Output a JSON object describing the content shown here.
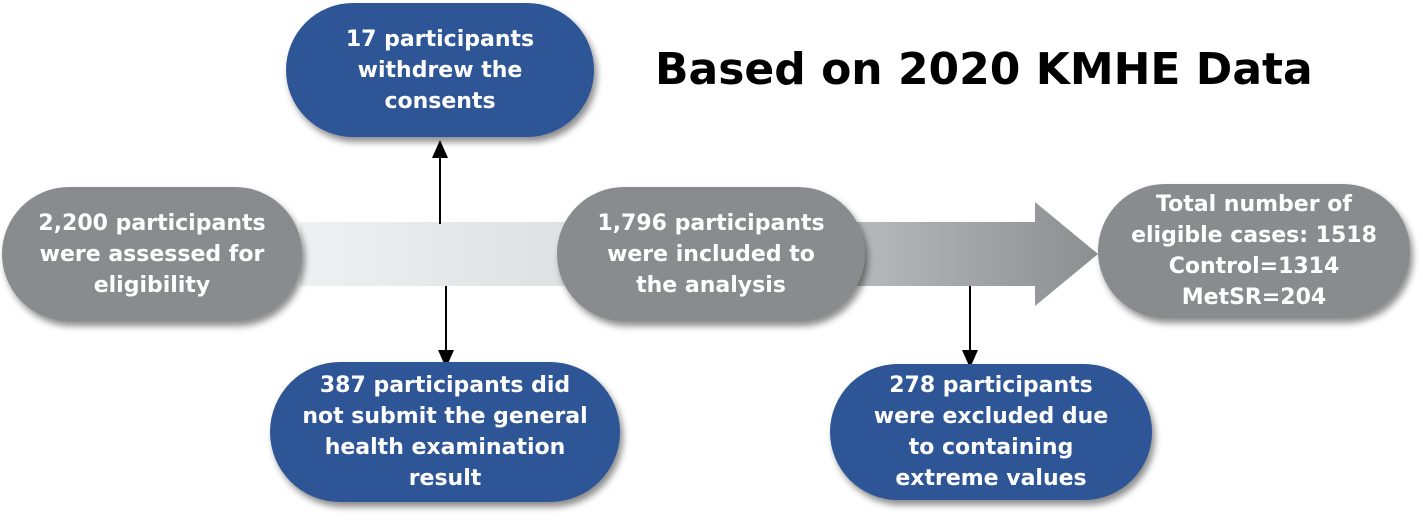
{
  "title": "Based on 2020 KMHE Data",
  "nodes": {
    "assessed": "2,200 participants\nwere assessed for\neligibility",
    "withdrew": "17 participants\nwithdrew the\nconsents",
    "not_submitted": "387 participants did\nnot submit the general\nhealth examination\nresult",
    "included": "1,796 participants\nwere included to\nthe analysis",
    "excluded": "278 participants\nwere excluded due\nto containing\nextreme values",
    "total": "Total number of\neligible cases: 1518\nControl=1314\nMetSR=204"
  },
  "colors": {
    "grey_node": "#898b8e",
    "blue_node": "#2e5596",
    "band_light": "#e6e8ea",
    "band_dark": "#8d8f92"
  }
}
